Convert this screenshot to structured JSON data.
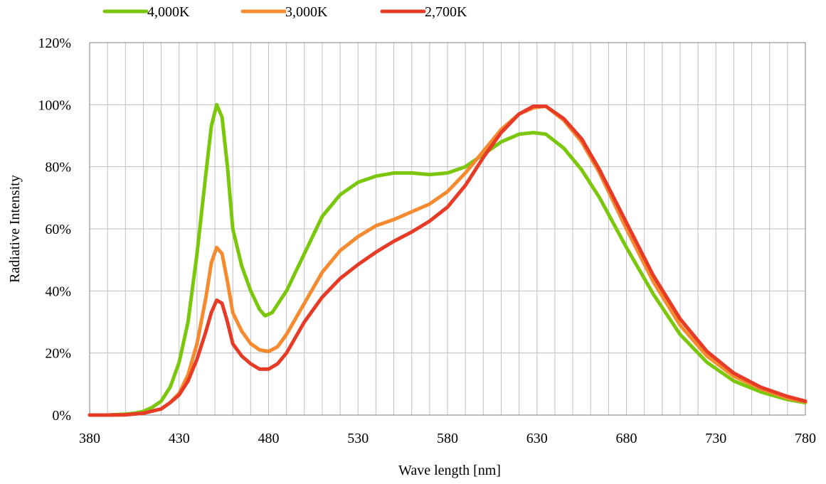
{
  "chart_data": {
    "type": "line",
    "title": "",
    "xlabel": "Wave length [nm]",
    "ylabel": "Radiative Intensity",
    "xlim": [
      380,
      780
    ],
    "ylim": [
      0,
      1.2
    ],
    "x_major_ticks": [
      380,
      430,
      480,
      530,
      580,
      630,
      680,
      730,
      780
    ],
    "x_minor_step": 10,
    "y_ticks": [
      0,
      0.2,
      0.4,
      0.6,
      0.8,
      1.0,
      1.2
    ],
    "y_tick_labels": [
      "0%",
      "20%",
      "40%",
      "60%",
      "80%",
      "100%",
      "120%"
    ],
    "grid": true,
    "legend_position": "top-left",
    "series": [
      {
        "name": "4,000K",
        "color": "#7ac70c",
        "points": [
          [
            380,
            0
          ],
          [
            390,
            0
          ],
          [
            400,
            0.003
          ],
          [
            405,
            0.006
          ],
          [
            410,
            0.012
          ],
          [
            415,
            0.025
          ],
          [
            420,
            0.045
          ],
          [
            425,
            0.09
          ],
          [
            430,
            0.17
          ],
          [
            435,
            0.3
          ],
          [
            440,
            0.52
          ],
          [
            445,
            0.78
          ],
          [
            448,
            0.93
          ],
          [
            451,
            1.0
          ],
          [
            454,
            0.96
          ],
          [
            457,
            0.8
          ],
          [
            460,
            0.6
          ],
          [
            465,
            0.48
          ],
          [
            470,
            0.4
          ],
          [
            475,
            0.34
          ],
          [
            478,
            0.32
          ],
          [
            482,
            0.33
          ],
          [
            490,
            0.4
          ],
          [
            500,
            0.52
          ],
          [
            510,
            0.64
          ],
          [
            520,
            0.71
          ],
          [
            530,
            0.75
          ],
          [
            540,
            0.77
          ],
          [
            550,
            0.78
          ],
          [
            560,
            0.78
          ],
          [
            570,
            0.775
          ],
          [
            580,
            0.78
          ],
          [
            590,
            0.8
          ],
          [
            600,
            0.84
          ],
          [
            610,
            0.88
          ],
          [
            620,
            0.905
          ],
          [
            628,
            0.91
          ],
          [
            635,
            0.905
          ],
          [
            645,
            0.86
          ],
          [
            655,
            0.79
          ],
          [
            665,
            0.7
          ],
          [
            680,
            0.54
          ],
          [
            695,
            0.39
          ],
          [
            710,
            0.26
          ],
          [
            725,
            0.17
          ],
          [
            740,
            0.11
          ],
          [
            755,
            0.075
          ],
          [
            770,
            0.05
          ],
          [
            780,
            0.04
          ]
        ]
      },
      {
        "name": "3,000K",
        "color": "#f58a2f",
        "points": [
          [
            380,
            0
          ],
          [
            390,
            0
          ],
          [
            400,
            0.001
          ],
          [
            410,
            0.006
          ],
          [
            420,
            0.02
          ],
          [
            425,
            0.04
          ],
          [
            430,
            0.07
          ],
          [
            435,
            0.13
          ],
          [
            440,
            0.23
          ],
          [
            445,
            0.38
          ],
          [
            448,
            0.49
          ],
          [
            451,
            0.54
          ],
          [
            454,
            0.52
          ],
          [
            457,
            0.43
          ],
          [
            460,
            0.33
          ],
          [
            465,
            0.27
          ],
          [
            470,
            0.23
          ],
          [
            475,
            0.21
          ],
          [
            480,
            0.205
          ],
          [
            485,
            0.22
          ],
          [
            490,
            0.26
          ],
          [
            500,
            0.36
          ],
          [
            510,
            0.46
          ],
          [
            520,
            0.53
          ],
          [
            530,
            0.575
          ],
          [
            540,
            0.61
          ],
          [
            550,
            0.63
          ],
          [
            560,
            0.655
          ],
          [
            570,
            0.68
          ],
          [
            580,
            0.72
          ],
          [
            590,
            0.78
          ],
          [
            600,
            0.85
          ],
          [
            610,
            0.92
          ],
          [
            620,
            0.97
          ],
          [
            628,
            0.99
          ],
          [
            635,
            0.995
          ],
          [
            645,
            0.95
          ],
          [
            655,
            0.88
          ],
          [
            665,
            0.78
          ],
          [
            680,
            0.6
          ],
          [
            695,
            0.43
          ],
          [
            710,
            0.29
          ],
          [
            725,
            0.19
          ],
          [
            740,
            0.125
          ],
          [
            755,
            0.085
          ],
          [
            770,
            0.055
          ],
          [
            780,
            0.043
          ]
        ]
      },
      {
        "name": "2,700K",
        "color": "#e63c27",
        "points": [
          [
            380,
            0
          ],
          [
            390,
            0
          ],
          [
            400,
            0.001
          ],
          [
            410,
            0.006
          ],
          [
            420,
            0.02
          ],
          [
            425,
            0.04
          ],
          [
            430,
            0.065
          ],
          [
            435,
            0.11
          ],
          [
            440,
            0.18
          ],
          [
            445,
            0.27
          ],
          [
            448,
            0.33
          ],
          [
            451,
            0.37
          ],
          [
            454,
            0.36
          ],
          [
            457,
            0.3
          ],
          [
            460,
            0.23
          ],
          [
            465,
            0.19
          ],
          [
            470,
            0.165
          ],
          [
            475,
            0.148
          ],
          [
            480,
            0.148
          ],
          [
            485,
            0.165
          ],
          [
            490,
            0.2
          ],
          [
            500,
            0.3
          ],
          [
            510,
            0.38
          ],
          [
            520,
            0.44
          ],
          [
            530,
            0.485
          ],
          [
            540,
            0.525
          ],
          [
            550,
            0.56
          ],
          [
            560,
            0.59
          ],
          [
            570,
            0.625
          ],
          [
            580,
            0.67
          ],
          [
            590,
            0.74
          ],
          [
            600,
            0.83
          ],
          [
            610,
            0.91
          ],
          [
            620,
            0.97
          ],
          [
            628,
            0.995
          ],
          [
            635,
            0.995
          ],
          [
            645,
            0.955
          ],
          [
            655,
            0.89
          ],
          [
            665,
            0.79
          ],
          [
            680,
            0.62
          ],
          [
            695,
            0.45
          ],
          [
            710,
            0.31
          ],
          [
            725,
            0.205
          ],
          [
            740,
            0.135
          ],
          [
            755,
            0.09
          ],
          [
            770,
            0.06
          ],
          [
            780,
            0.045
          ]
        ]
      }
    ]
  }
}
